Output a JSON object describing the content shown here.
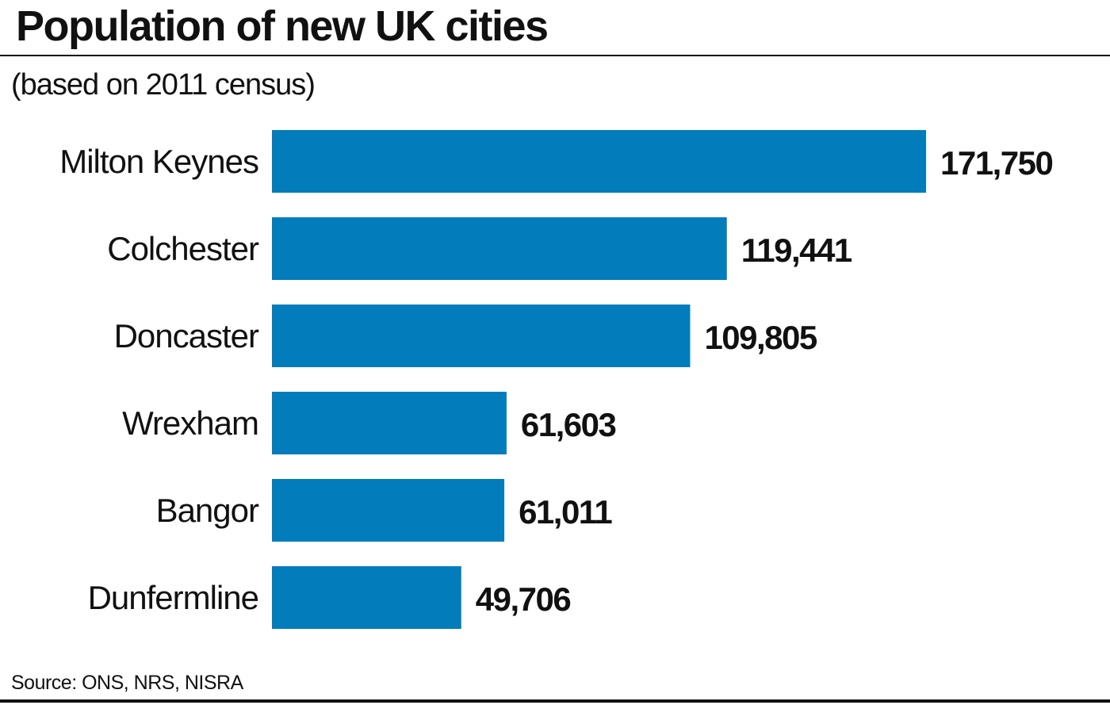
{
  "header": {
    "title": "Population of new UK cities",
    "subtitle": "(based on 2011 census)"
  },
  "footer": {
    "source": "Source: ONS, NRS, NISRA"
  },
  "colors": {
    "bar": "#027cbb",
    "text": "#111111",
    "background": "#ffffff"
  },
  "chart_data": {
    "type": "bar",
    "orientation": "horizontal",
    "title": "Population of new UK cities",
    "subtitle": "(based on 2011 census)",
    "categories": [
      "Milton Keynes",
      "Colchester",
      "Doncaster",
      "Wrexham",
      "Bangor",
      "Dunfermline"
    ],
    "values": [
      171750,
      119441,
      109805,
      61603,
      61011,
      49706
    ],
    "value_labels": [
      "171,750",
      "119,441",
      "109,805",
      "61,603",
      "61,011",
      "49,706"
    ],
    "xlim": [
      0,
      171750
    ],
    "grid": false,
    "legend": "none",
    "xlabel": "",
    "ylabel": ""
  }
}
